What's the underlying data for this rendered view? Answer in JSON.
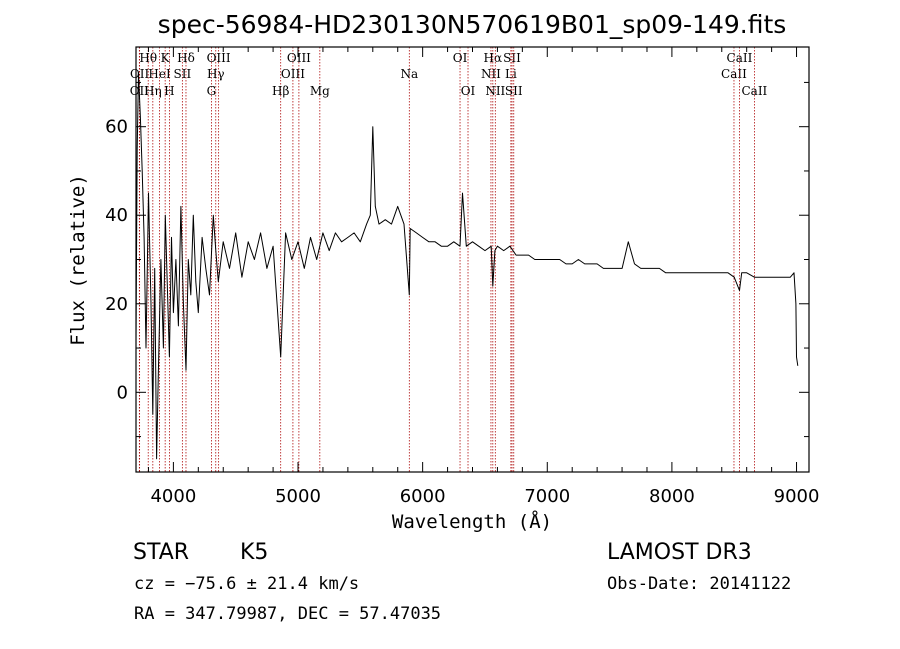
{
  "chart_data": {
    "type": "line",
    "title": "spec-56984-HD230130N570619B01_sp09-149.fits",
    "xlabel": "Wavelength (Å)",
    "ylabel": "Flux (relative)",
    "xlim": [
      3700,
      9100
    ],
    "ylim": [
      -18,
      78
    ],
    "x_ticks": [
      4000,
      5000,
      6000,
      7000,
      8000,
      9000
    ],
    "y_ticks": [
      0,
      20,
      40,
      60
    ],
    "grid": false,
    "series": [
      {
        "name": "spectrum",
        "x": [
          3700,
          3710,
          3720,
          3735,
          3750,
          3765,
          3780,
          3800,
          3820,
          3835,
          3850,
          3865,
          3880,
          3900,
          3920,
          3935,
          3950,
          3968,
          3985,
          4000,
          4020,
          4040,
          4060,
          4080,
          4101,
          4120,
          4140,
          4160,
          4180,
          4200,
          4230,
          4260,
          4290,
          4320,
          4340,
          4360,
          4400,
          4450,
          4500,
          4550,
          4600,
          4650,
          4700,
          4750,
          4800,
          4861,
          4900,
          4950,
          5000,
          5050,
          5100,
          5150,
          5200,
          5250,
          5300,
          5350,
          5400,
          5450,
          5500,
          5550,
          5580,
          5600,
          5620,
          5650,
          5700,
          5750,
          5800,
          5850,
          5893,
          5900,
          5950,
          6000,
          6050,
          6100,
          6150,
          6200,
          6250,
          6300,
          6320,
          6350,
          6400,
          6450,
          6500,
          6550,
          6563,
          6580,
          6600,
          6650,
          6700,
          6750,
          6800,
          6850,
          6900,
          6950,
          7000,
          7050,
          7100,
          7150,
          7200,
          7250,
          7300,
          7350,
          7400,
          7450,
          7500,
          7550,
          7600,
          7650,
          7700,
          7750,
          7800,
          7850,
          7900,
          7950,
          8000,
          8050,
          8100,
          8150,
          8200,
          8250,
          8300,
          8350,
          8400,
          8450,
          8500,
          8542,
          8560,
          8600,
          8662,
          8700,
          8750,
          8800,
          8850,
          8900,
          8950,
          8980,
          8995,
          9000,
          9010
        ],
        "y": [
          12,
          55,
          72,
          62,
          50,
          35,
          10,
          45,
          20,
          -5,
          28,
          -15,
          5,
          30,
          10,
          40,
          25,
          8,
          35,
          18,
          30,
          15,
          42,
          20,
          5,
          30,
          22,
          40,
          25,
          18,
          35,
          28,
          22,
          40,
          32,
          25,
          34,
          28,
          36,
          26,
          34,
          30,
          36,
          28,
          33,
          8,
          36,
          30,
          34,
          28,
          35,
          30,
          36,
          32,
          36,
          34,
          35,
          36,
          34,
          38,
          40,
          60,
          42,
          38,
          39,
          38,
          42,
          38,
          22,
          37,
          36,
          35,
          34,
          34,
          33,
          33,
          34,
          33,
          45,
          33,
          34,
          33,
          32,
          33,
          24,
          32,
          33,
          32,
          33,
          31,
          31,
          31,
          30,
          30,
          30,
          30,
          30,
          29,
          29,
          30,
          29,
          29,
          29,
          28,
          28,
          28,
          28,
          34,
          29,
          28,
          28,
          28,
          28,
          27,
          27,
          27,
          27,
          27,
          27,
          27,
          27,
          27,
          27,
          27,
          26,
          23,
          27,
          27,
          26,
          26,
          26,
          26,
          26,
          26,
          26,
          27,
          20,
          8,
          6
        ]
      }
    ],
    "line_markers": [
      {
        "id": "oii",
        "label": "OII",
        "wavelength": 3727,
        "row": 3
      },
      {
        "id": "oii-b",
        "label": "OII",
        "wavelength": 3729,
        "row": 2
      },
      {
        "id": "htheta",
        "label": "Hθ",
        "wavelength": 3798,
        "row": 1
      },
      {
        "id": "heta",
        "label": "Hη",
        "wavelength": 3835,
        "row": 3
      },
      {
        "id": "hei",
        "label": "HeI",
        "wavelength": 3889,
        "row": 2
      },
      {
        "id": "k",
        "label": "K",
        "wavelength": 3934,
        "row": 1
      },
      {
        "id": "h",
        "label": "H",
        "wavelength": 3968,
        "row": 3
      },
      {
        "id": "sii-blue",
        "label": "SII",
        "wavelength": 4072,
        "row": 2
      },
      {
        "id": "hdelta",
        "label": "Hδ",
        "wavelength": 4101,
        "row": 1
      },
      {
        "id": "g",
        "label": "G",
        "wavelength": 4305,
        "row": 3
      },
      {
        "id": "hgamma",
        "label": "Hγ",
        "wavelength": 4340,
        "row": 2
      },
      {
        "id": "oiii-4363",
        "label": "OIII",
        "wavelength": 4363,
        "row": 1
      },
      {
        "id": "hbeta",
        "label": "Hβ",
        "wavelength": 4861,
        "row": 3
      },
      {
        "id": "oiii-4959",
        "label": "OIII",
        "wavelength": 4959,
        "row": 2
      },
      {
        "id": "oiii-5007",
        "label": "OIII",
        "wavelength": 5007,
        "row": 1
      },
      {
        "id": "mg",
        "label": "Mg",
        "wavelength": 5175,
        "row": 3
      },
      {
        "id": "na",
        "label": "Na",
        "wavelength": 5893,
        "row": 2
      },
      {
        "id": "oi-6300",
        "label": "OI",
        "wavelength": 6300,
        "row": 1
      },
      {
        "id": "oi-6364",
        "label": "OI",
        "wavelength": 6364,
        "row": 3
      },
      {
        "id": "nii-6548",
        "label": "NII",
        "wavelength": 6548,
        "row": 2
      },
      {
        "id": "halpha",
        "label": "Hα",
        "wavelength": 6563,
        "row": 1
      },
      {
        "id": "nii-6583",
        "label": "NII",
        "wavelength": 6583,
        "row": 3
      },
      {
        "id": "li",
        "label": "Li",
        "wavelength": 6708,
        "row": 2
      },
      {
        "id": "sii-6717",
        "label": "SII",
        "wavelength": 6717,
        "row": 1
      },
      {
        "id": "sii-6731",
        "label": "SII",
        "wavelength": 6731,
        "row": 3
      },
      {
        "id": "caii-8498",
        "label": "CaII",
        "wavelength": 8498,
        "row": 2
      },
      {
        "id": "caii-8542",
        "label": "CaII",
        "wavelength": 8542,
        "row": 1
      },
      {
        "id": "caii-8662",
        "label": "CaII",
        "wavelength": 8662,
        "row": 3
      }
    ]
  },
  "info": {
    "object_class": "STAR",
    "subclass": "K5",
    "survey": "LAMOST DR3",
    "redshift_line": "cz = −75.6 ± 21.4 km/s",
    "obs_date": "Obs-Date: 20141122",
    "coords": "RA = 347.79987, DEC =  57.47035"
  },
  "colors": {
    "spectrum": "#000000",
    "marker": "#b01010",
    "axis": "#000000"
  }
}
